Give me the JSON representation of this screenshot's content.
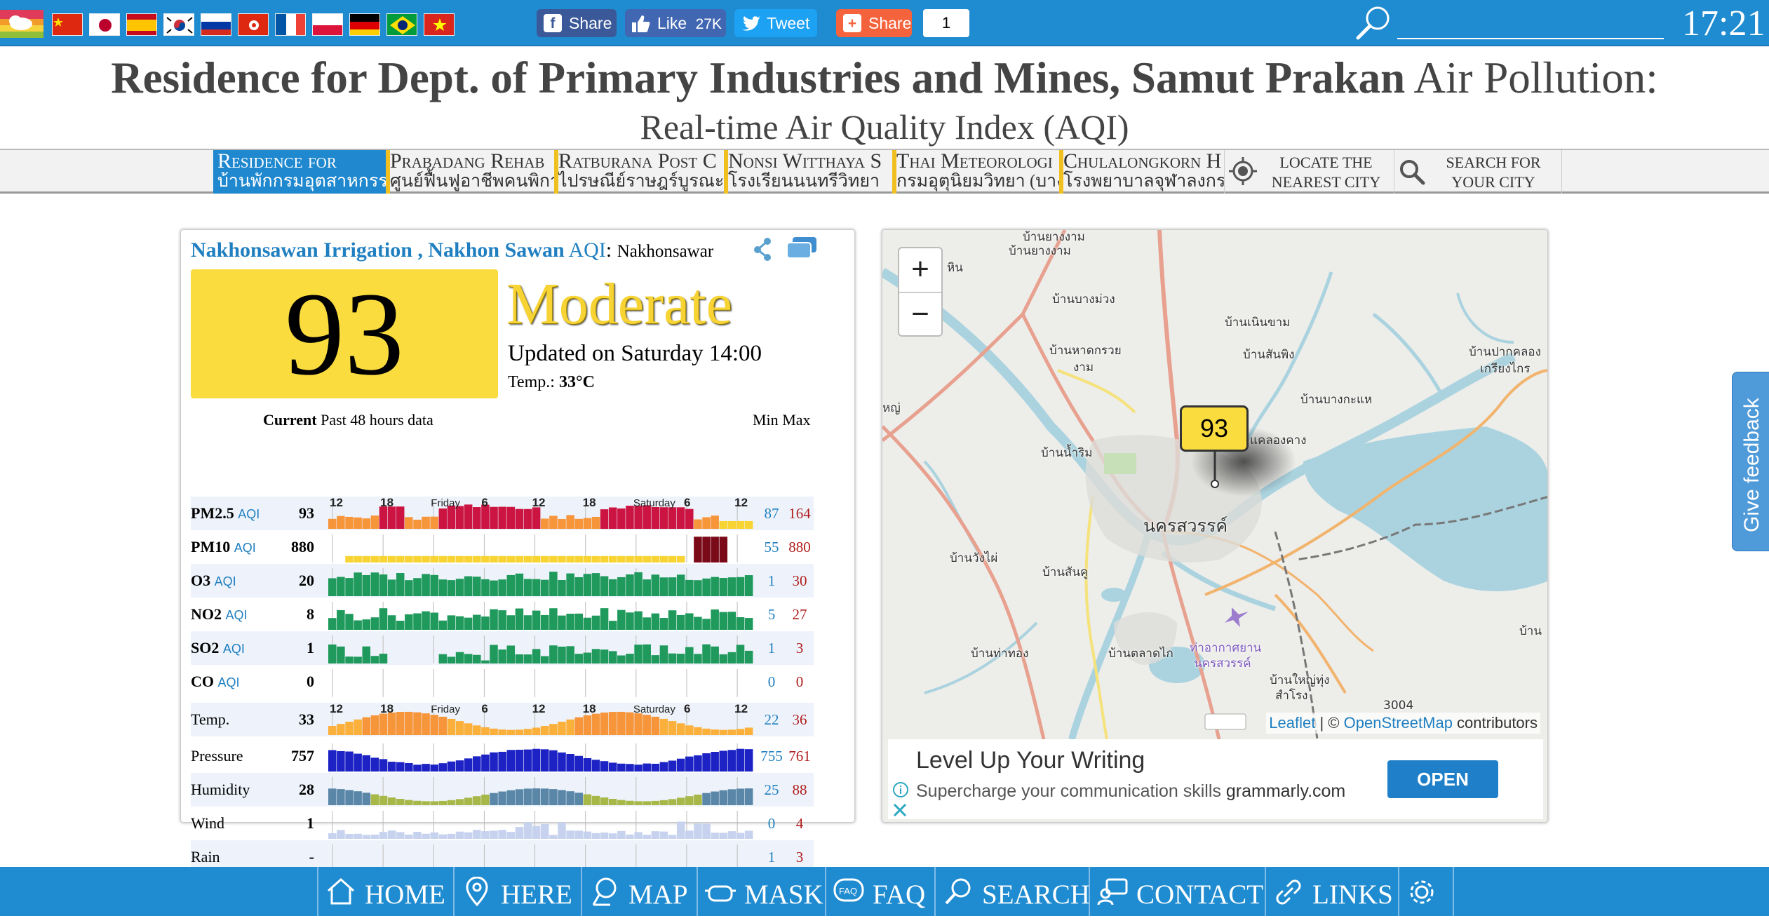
{
  "topbar": {
    "flags": [
      "china-flag",
      "japan-flag",
      "spain-flag",
      "korea-flag",
      "russia-flag",
      "hongkong-flag",
      "france-flag",
      "poland-flag",
      "germany-flag",
      "brazil-flag",
      "vietnam-flag"
    ],
    "fb_share": "Share",
    "fb_like": "Like",
    "fb_like_count": "27K",
    "tweet": "Tweet",
    "share": "Share",
    "share_count": "1",
    "clock": "17:21"
  },
  "title": {
    "station": "Residence for Dept. of Primary Industries and Mines, Samut Prakan",
    "suffix": "Air Pollution:",
    "line2": "Real-time Air Quality Index (AQI)"
  },
  "nav": {
    "cities": [
      {
        "en": "Residence for",
        "th": "บ้านพักกรมอุตสาหกรรม"
      },
      {
        "en": "Prabadang Rehab",
        "th": "ศูนย์ฟื้นฟูอาชีพคนพิการ"
      },
      {
        "en": "Ratburana Post C",
        "th": "ไปรษณีย์ราษฎร์บูรณะ"
      },
      {
        "en": "Nonsi Witthaya S",
        "th": "โรงเรียนนนทรีวิทยา"
      },
      {
        "en": "Thai Meteorologi",
        "th": "กรมอุตุนิยมวิทยา (บางนา)"
      },
      {
        "en": "Chulalongkorn H",
        "th": "โรงพยาบาลจุฬาลงกรณ์"
      }
    ],
    "locate": "LOCATE THE\nNEAREST CITY",
    "search": "SEARCH FOR\nYOUR CITY"
  },
  "card": {
    "station": "Nakhonsawan Irrigation , Nakhon Sawan",
    "aqi_label": "AQI",
    "colon": ":",
    "local_name": "Nakhonsawar",
    "aqi": "93",
    "level": "Moderate",
    "updated": "Updated on Saturday 14:00",
    "temp_label": "Temp.:",
    "temp_value": "33°C",
    "hdr_current": "Current",
    "hdr_past": "Past 48 hours data",
    "hdr_min": "Min",
    "hdr_max": "Max",
    "time_ticks": [
      "12",
      "18",
      "Friday",
      "6",
      "12",
      "18",
      "Saturday",
      "6",
      "12"
    ],
    "rows": [
      {
        "name": "PM2.5",
        "sub": "AQI",
        "value": "93",
        "min": "87",
        "max": "164"
      },
      {
        "name": "PM10",
        "sub": "AQI",
        "value": "880",
        "min": "55",
        "max": "880"
      },
      {
        "name": "O3",
        "sub": "AQI",
        "value": "20",
        "min": "1",
        "max": "30"
      },
      {
        "name": "NO2",
        "sub": "AQI",
        "value": "8",
        "min": "5",
        "max": "27"
      },
      {
        "name": "SO2",
        "sub": "AQI",
        "value": "1",
        "min": "1",
        "max": "3"
      },
      {
        "name": "CO",
        "sub": "AQI",
        "value": "0",
        "min": "0",
        "max": "0"
      },
      {
        "name": "Temp.",
        "sub": "",
        "value": "33",
        "min": "22",
        "max": "36"
      },
      {
        "name": "Pressure",
        "sub": "",
        "value": "757",
        "min": "755",
        "max": "761"
      },
      {
        "name": "Humidity",
        "sub": "",
        "value": "28",
        "min": "25",
        "max": "88"
      },
      {
        "name": "Wind",
        "sub": "",
        "value": "1",
        "min": "0",
        "max": "4"
      },
      {
        "name": "Rain",
        "sub": "",
        "value": "-",
        "min": "1",
        "max": "3"
      }
    ]
  },
  "map": {
    "zoom_in": "+",
    "zoom_out": "−",
    "marker": "93",
    "labels": [
      "บ้านยางงาม",
      "บ้านยางงาม",
      "บ้านบางม่วง",
      "บ้านเนินขาม",
      "บ้านหาดกรวย",
      "งาม",
      "บ้านสันพิง",
      "บ้านปากคลอง",
      "เกรียงไกร",
      "บ้านบางกะแห",
      "หญ่",
      "บ้านน้ำริม",
      "แคลองคาง",
      "นครสวรรค์",
      "บ้านวังไผ่",
      "บ้านสันคู",
      "บ้านท่าทอง",
      "บ้านตลาดไก",
      "ท่าอากาศยาน",
      "นครสวรรค์",
      "บ้านใหญ่ทุ่ง",
      "สำโรง",
      "3004",
      "บ้าน",
      "หิน"
    ],
    "attribution": {
      "leaflet": "Leaflet",
      "sep": " | © ",
      "osm": "OpenStreetMap",
      "contrib": " contributors"
    }
  },
  "ad": {
    "title": "Level Up Your Writing",
    "desc": "Supercharge your communication skills",
    "domain": "grammarly.com",
    "cta": "OPEN"
  },
  "feedback": "Give feedback",
  "footer": {
    "items": [
      "HOME",
      "HERE",
      "MAP",
      "MASK",
      "FAQ",
      "SEARCH",
      "CONTACT",
      "LINKS"
    ]
  },
  "colors": {
    "brand_blue": "#1f8bd0",
    "aqi_moderate": "#fbdc3e",
    "max_red": "#b01c1c",
    "min_blue": "#1f7fc0"
  }
}
